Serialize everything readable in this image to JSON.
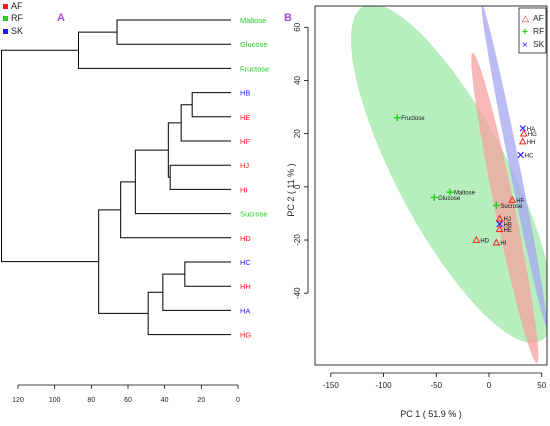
{
  "colors": {
    "AF": "#ff1a1a",
    "RF": "#22cc22",
    "SK": "#1a1aff",
    "panel_label": "#a44bd1",
    "ellipse_AF": "#f7a0a0",
    "ellipse_RF": "#9fe8a8",
    "ellipse_SK": "#a6a6f2"
  },
  "legend_top_left": [
    {
      "group": "AF",
      "label": "AF"
    },
    {
      "group": "RF",
      "label": "RF"
    },
    {
      "group": "SK",
      "label": "SK"
    }
  ],
  "chart_data": [
    {
      "type": "dendrogram",
      "panel_label": "A",
      "axis_ticks": [
        "120",
        "100",
        "80",
        "60",
        "40",
        "20",
        "0"
      ],
      "xlim": [
        120,
        0
      ],
      "leaves": [
        {
          "label": "Maltose",
          "group": "RF"
        },
        {
          "label": "Glucose",
          "group": "RF"
        },
        {
          "label": "Fructose",
          "group": "RF"
        },
        {
          "label": "HB",
          "group": "SK"
        },
        {
          "label": "HE",
          "group": "AF"
        },
        {
          "label": "HF",
          "group": "AF"
        },
        {
          "label": "HJ",
          "group": "AF"
        },
        {
          "label": "HI",
          "group": "AF"
        },
        {
          "label": "Sucrose",
          "group": "RF"
        },
        {
          "label": "HD",
          "group": "AF"
        },
        {
          "label": "HC",
          "group": "SK"
        },
        {
          "label": "HH",
          "group": "AF"
        },
        {
          "label": "HA",
          "group": "SK"
        },
        {
          "label": "HG",
          "group": "AF"
        }
      ],
      "merges": [
        {
          "id": "m1",
          "a": "Maltose",
          "b": "Glucose",
          "height": 66
        },
        {
          "id": "m2",
          "a": "m1",
          "b": "Fructose",
          "height": 87
        },
        {
          "id": "m3",
          "a": "HB",
          "b": "HE",
          "height": 25
        },
        {
          "id": "m4",
          "a": "m3",
          "b": "HF",
          "height": 31
        },
        {
          "id": "m5",
          "a": "HJ",
          "b": "HI",
          "height": 37
        },
        {
          "id": "m6",
          "a": "m4",
          "b": "m5",
          "height": 38
        },
        {
          "id": "m7",
          "a": "m6",
          "b": "Sucrose",
          "height": 56
        },
        {
          "id": "m8",
          "a": "m7",
          "b": "HD",
          "height": 64
        },
        {
          "id": "m9",
          "a": "HC",
          "b": "HH",
          "height": 29
        },
        {
          "id": "m10",
          "a": "m9",
          "b": "HA",
          "height": 41
        },
        {
          "id": "m11",
          "a": "m10",
          "b": "HG",
          "height": 49
        },
        {
          "id": "m12",
          "a": "m8",
          "b": "m11",
          "height": 76
        },
        {
          "id": "m13",
          "a": "m2",
          "b": "m12",
          "height": 129
        }
      ]
    },
    {
      "type": "scatter",
      "panel_label": "B",
      "xlabel": "PC 1 ( 51.9 % )",
      "ylabel": "PC 2 ( 11 % )",
      "xlim": [
        -165,
        55
      ],
      "ylim": [
        -67,
        68
      ],
      "x_ticks": [
        -150,
        -100,
        -50,
        0,
        50
      ],
      "y_ticks": [
        -40,
        -20,
        0,
        20,
        40,
        60
      ],
      "legend": [
        {
          "group": "AF",
          "marker": "△",
          "label": "AF"
        },
        {
          "group": "RF",
          "marker": "+",
          "label": "RF"
        },
        {
          "group": "SK",
          "marker": "×",
          "label": "SK"
        }
      ],
      "points": [
        {
          "label": "Fructose",
          "group": "RF",
          "x": -87,
          "y": 26
        },
        {
          "label": "Maltose",
          "group": "RF",
          "x": -37,
          "y": -2
        },
        {
          "label": "Glucose",
          "group": "RF",
          "x": -52,
          "y": -4
        },
        {
          "label": "Sucrose",
          "group": "RF",
          "x": 7,
          "y": -7
        },
        {
          "label": "HA",
          "group": "SK",
          "x": 32,
          "y": 22
        },
        {
          "label": "HG",
          "group": "AF",
          "x": 33,
          "y": 20
        },
        {
          "label": "HH",
          "group": "AF",
          "x": 32,
          "y": 17
        },
        {
          "label": "HC",
          "group": "SK",
          "x": 30,
          "y": 12
        },
        {
          "label": "HF",
          "group": "AF",
          "x": 22,
          "y": -5
        },
        {
          "label": "HJ",
          "group": "AF",
          "x": 10,
          "y": -12
        },
        {
          "label": "HB",
          "group": "SK",
          "x": 10,
          "y": -14
        },
        {
          "label": "HE",
          "group": "AF",
          "x": 10,
          "y": -16
        },
        {
          "label": "HD",
          "group": "AF",
          "x": -12,
          "y": -20
        },
        {
          "label": "HI",
          "group": "AF",
          "x": 7,
          "y": -21
        }
      ],
      "ellipses": [
        {
          "group": "RF",
          "cx": -35,
          "cy": 5,
          "rx": 110,
          "ry": 34,
          "angle": -31
        },
        {
          "group": "AF",
          "cx": 15,
          "cy": -8,
          "rx": 66,
          "ry": 8.5,
          "angle": -62
        },
        {
          "group": "SK",
          "cx": 24,
          "cy": 8,
          "rx": 68,
          "ry": 4.5,
          "angle": -63
        }
      ]
    }
  ]
}
